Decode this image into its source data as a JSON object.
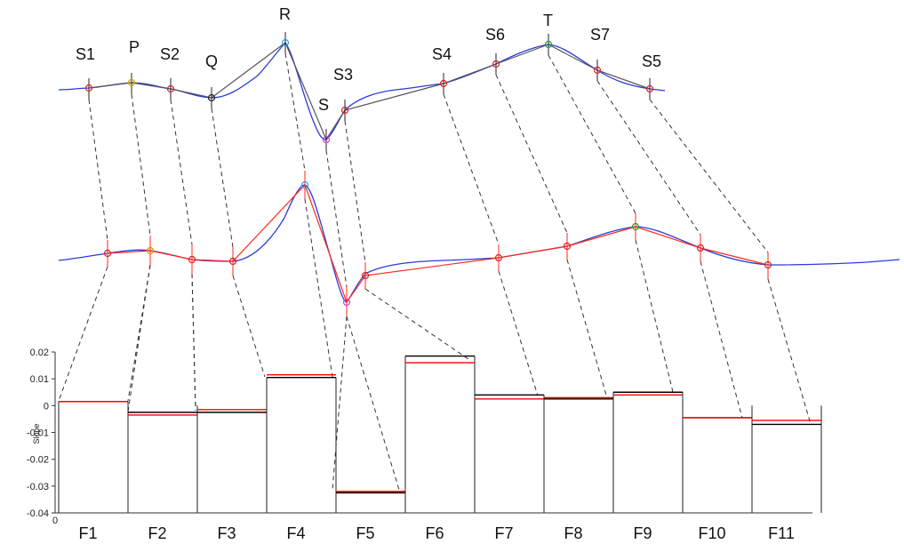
{
  "chart_data": {
    "type": "bar",
    "ylabel": "Slope",
    "xorigin_label": "0",
    "ylim": [
      -0.04,
      0.02
    ],
    "yticks": [
      0.02,
      0.01,
      0,
      -0.01,
      -0.02,
      -0.03,
      -0.04
    ],
    "yticklabels": [
      "0.02",
      "0.01",
      "0",
      "-0.01",
      "-0.02",
      "-0.03",
      "-0.04"
    ],
    "categories": [
      "F1",
      "F2",
      "F3",
      "F4",
      "F5",
      "F6",
      "F7",
      "F8",
      "F9",
      "F10",
      "F11"
    ],
    "series": [
      {
        "color": "#000000",
        "values": [
          0.0015,
          -0.0025,
          -0.0025,
          0.0105,
          -0.0325,
          0.0185,
          0.004,
          0.0025,
          0.005,
          -0.0045,
          -0.007
        ]
      },
      {
        "color": "#ff0000",
        "values": [
          0.0015,
          -0.0035,
          -0.0015,
          0.0115,
          -0.032,
          0.016,
          0.0025,
          0.003,
          0.004,
          -0.0045,
          -0.0055
        ]
      }
    ],
    "top_signal_labels": [
      "S1",
      "P",
      "S2",
      "Q",
      "R",
      "S",
      "S3",
      "S4",
      "S6",
      "T",
      "S7",
      "S5"
    ],
    "colors": {
      "blue_trace": "#2b3bd8",
      "black_segment": "#555555",
      "red_segment": "#ff2a1a",
      "marker": "#e0202a"
    }
  }
}
